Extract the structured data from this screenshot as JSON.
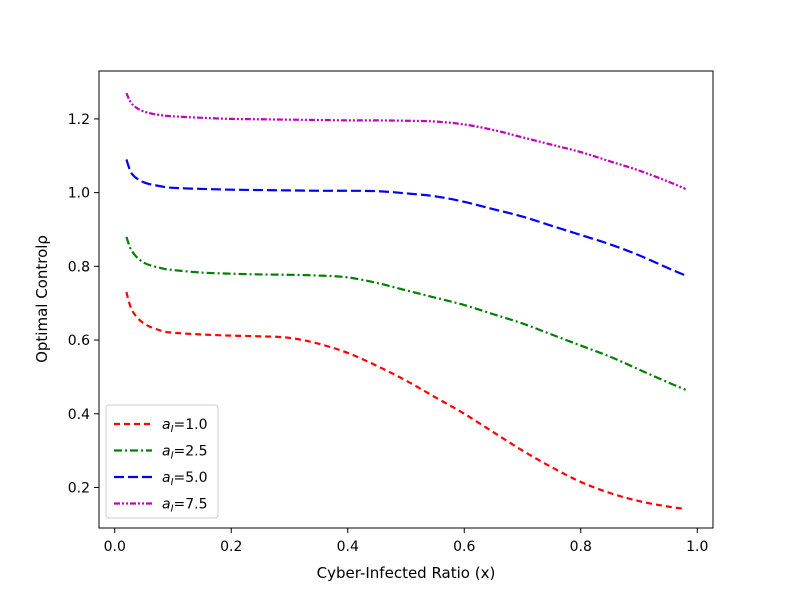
{
  "chart_data": {
    "type": "line",
    "title": "",
    "xlabel": "Cyber-Infected Ratio (x)",
    "ylabel": "Optimal Controlρ",
    "xlim": [
      -0.027,
      1.027
    ],
    "ylim": [
      0.09,
      1.33
    ],
    "xticks": [
      0.0,
      0.2,
      0.4,
      0.6,
      0.8,
      1.0
    ],
    "xtick_labels": [
      "0.0",
      "0.2",
      "0.4",
      "0.6",
      "0.8",
      "1.0"
    ],
    "yticks": [
      0.2,
      0.4,
      0.6,
      0.8,
      1.0,
      1.2
    ],
    "ytick_labels": [
      "0.2",
      "0.4",
      "0.6",
      "0.8",
      "1.0",
      "1.2"
    ],
    "grid": false,
    "legend_position": "lower-left",
    "x": [
      0.02,
      0.03,
      0.05,
      0.08,
      0.1,
      0.15,
      0.2,
      0.25,
      0.3,
      0.35,
      0.4,
      0.45,
      0.5,
      0.55,
      0.6,
      0.65,
      0.7,
      0.75,
      0.8,
      0.85,
      0.9,
      0.95,
      0.98
    ],
    "series": [
      {
        "name": "a_I=1.0",
        "legend_prefix": "a",
        "legend_sub": "I",
        "legend_value": "=1.0",
        "color": "#ff0000",
        "dash": "6,4",
        "values": [
          0.73,
          0.68,
          0.645,
          0.625,
          0.62,
          0.615,
          0.612,
          0.61,
          0.606,
          0.59,
          0.565,
          0.53,
          0.49,
          0.445,
          0.4,
          0.35,
          0.3,
          0.255,
          0.215,
          0.185,
          0.163,
          0.148,
          0.142
        ]
      },
      {
        "name": "a_I=2.5",
        "legend_prefix": "a",
        "legend_sub": "I",
        "legend_value": "=2.5",
        "color": "#008000",
        "dash": "8,3,2,3",
        "values": [
          0.88,
          0.84,
          0.81,
          0.795,
          0.79,
          0.783,
          0.78,
          0.778,
          0.777,
          0.775,
          0.77,
          0.755,
          0.735,
          0.715,
          0.695,
          0.67,
          0.645,
          0.615,
          0.585,
          0.555,
          0.52,
          0.485,
          0.465
        ]
      },
      {
        "name": "a_I=5.0",
        "legend_prefix": "a",
        "legend_sub": "I",
        "legend_value": "=5.0",
        "color": "#0000ff",
        "dash": "10,4",
        "values": [
          1.09,
          1.05,
          1.028,
          1.017,
          1.013,
          1.01,
          1.008,
          1.007,
          1.006,
          1.005,
          1.005,
          1.004,
          0.998,
          0.99,
          0.975,
          0.955,
          0.935,
          0.91,
          0.885,
          0.86,
          0.83,
          0.795,
          0.775
        ]
      },
      {
        "name": "a_I=7.5",
        "legend_prefix": "a",
        "legend_sub": "I",
        "legend_value": "=7.5",
        "color": "#bf00bf",
        "dash": "6,2,2,2,2,2",
        "values": [
          1.27,
          1.24,
          1.22,
          1.21,
          1.207,
          1.203,
          1.2,
          1.199,
          1.198,
          1.197,
          1.196,
          1.196,
          1.195,
          1.193,
          1.185,
          1.17,
          1.15,
          1.13,
          1.11,
          1.085,
          1.06,
          1.03,
          1.01
        ]
      }
    ]
  }
}
